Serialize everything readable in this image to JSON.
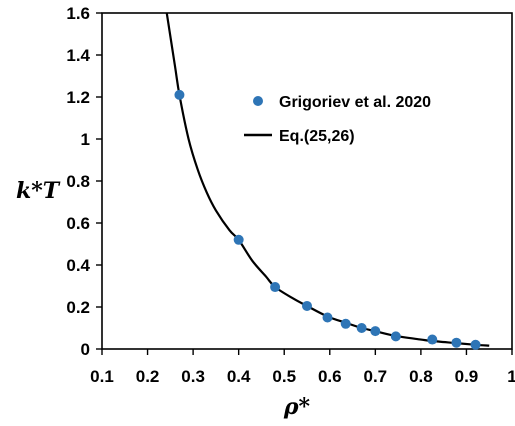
{
  "chart_data": {
    "type": "scatter",
    "title": "",
    "xlabel": "ρ*",
    "ylabel": "k*T",
    "xlim": [
      0.1,
      1.0
    ],
    "ylim": [
      0,
      1.6
    ],
    "xticks": [
      "0.1",
      "0.2",
      "0.3",
      "0.4",
      "0.5",
      "0.6",
      "0.7",
      "0.8",
      "0.9",
      "1"
    ],
    "yticks": [
      "0",
      "0.2",
      "0.4",
      "0.6",
      "0.8",
      "1",
      "1.2",
      "1.4",
      "1.6"
    ],
    "grid": false,
    "legend_position": "upper-right",
    "series": [
      {
        "name": "Grigoriev et al. 2020",
        "kind": "scatter",
        "color": "#2e75b6",
        "x": [
          0.27,
          0.4,
          0.48,
          0.55,
          0.595,
          0.635,
          0.67,
          0.7,
          0.745,
          0.825,
          0.878,
          0.92
        ],
        "y": [
          1.21,
          0.52,
          0.295,
          0.205,
          0.15,
          0.12,
          0.1,
          0.085,
          0.06,
          0.045,
          0.03,
          0.02
        ]
      },
      {
        "name": "Eq.(25,26)",
        "kind": "line",
        "color": "#000000",
        "x": [
          0.24,
          0.26,
          0.27,
          0.29,
          0.31,
          0.33,
          0.35,
          0.38,
          0.4,
          0.43,
          0.46,
          0.48,
          0.52,
          0.55,
          0.595,
          0.635,
          0.67,
          0.7,
          0.745,
          0.8,
          0.825,
          0.878,
          0.92,
          0.95
        ],
        "y": [
          1.63,
          1.35,
          1.21,
          1.0,
          0.855,
          0.745,
          0.66,
          0.565,
          0.52,
          0.42,
          0.345,
          0.295,
          0.24,
          0.205,
          0.155,
          0.125,
          0.1,
          0.085,
          0.062,
          0.045,
          0.038,
          0.028,
          0.02,
          0.016
        ]
      }
    ]
  }
}
